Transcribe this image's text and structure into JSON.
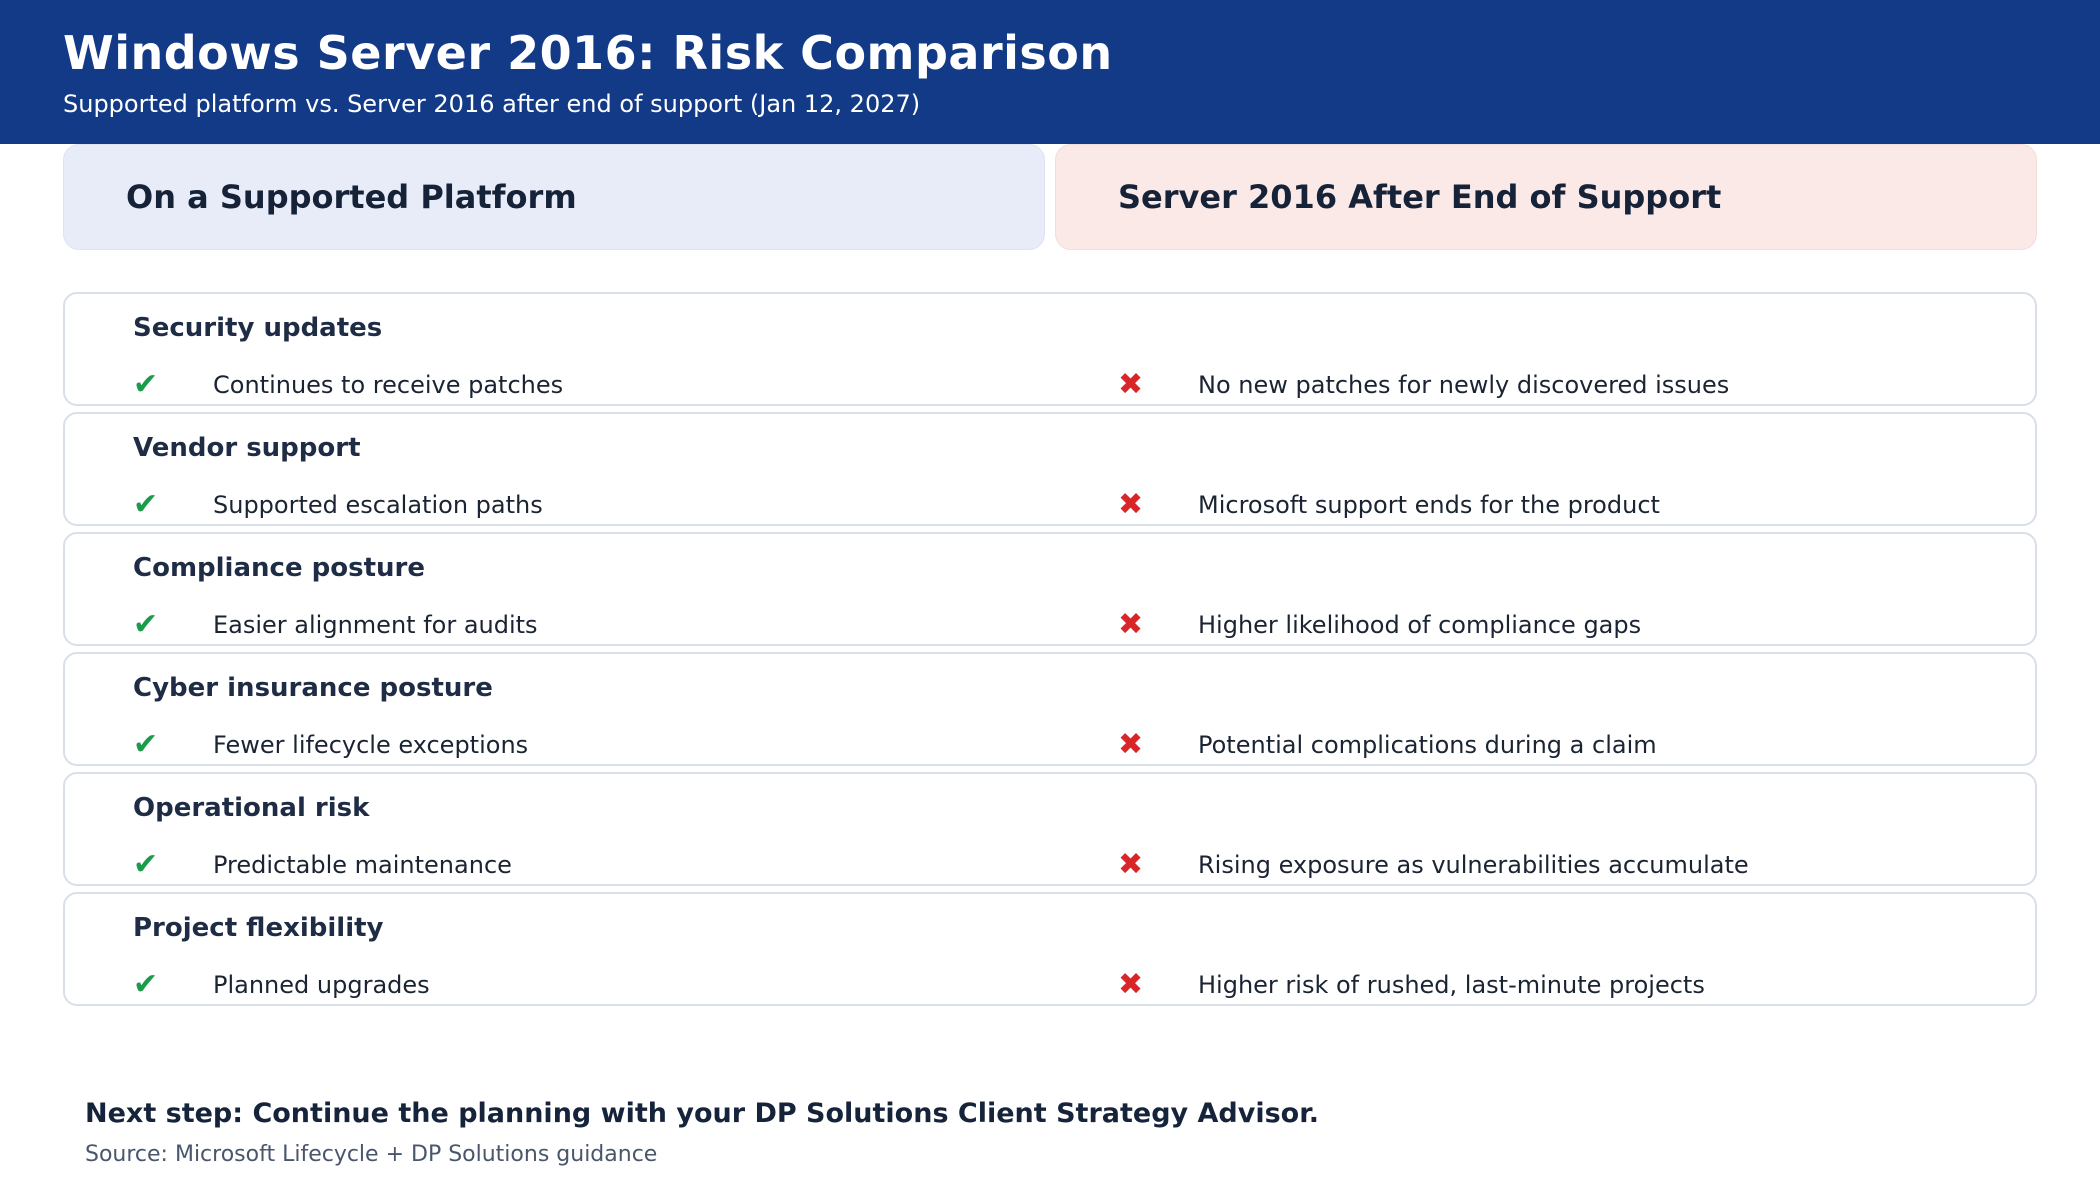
{
  "header": {
    "title": "Windows Server 2016: Risk Comparison",
    "subtitle": "Supported platform vs. Server 2016 after end of support (Jan 12, 2027)"
  },
  "columns": {
    "left": {
      "label": "On a Supported Platform"
    },
    "right": {
      "label": "Server 2016 After End of Support"
    }
  },
  "icons": {
    "pro": "✔",
    "con": "✖"
  },
  "rows": [
    {
      "category": "Security updates",
      "pro": "Continues to receive patches",
      "con": "No new patches for newly discovered issues"
    },
    {
      "category": "Vendor support",
      "pro": "Supported escalation paths",
      "con": "Microsoft support ends for the product"
    },
    {
      "category": "Compliance posture",
      "pro": "Easier alignment for audits",
      "con": "Higher likelihood of compliance gaps"
    },
    {
      "category": "Cyber insurance posture",
      "pro": "Fewer lifecycle exceptions",
      "con": "Potential complications during a claim"
    },
    {
      "category": "Operational risk",
      "pro": "Predictable maintenance",
      "con": "Rising exposure as vulnerabilities accumulate"
    },
    {
      "category": "Project flexibility",
      "pro": "Planned upgrades",
      "con": "Higher risk of rushed, last-minute projects"
    }
  ],
  "footer": {
    "next_step": "Next step: Continue the planning with your DP Solutions Client Strategy Advisor.",
    "source": "Source: Microsoft Lifecycle + DP Solutions guidance"
  },
  "colors": {
    "banner_blue": "#123a86",
    "pill_blue_bg": "#e7ecf8",
    "pill_pink_bg": "#fbe9e8",
    "card_border": "#d9dfe9",
    "check_green": "#1b9c4b",
    "cross_red": "#d92528",
    "heading_navy": "#1f2c45",
    "source_gray": "#49566b"
  }
}
